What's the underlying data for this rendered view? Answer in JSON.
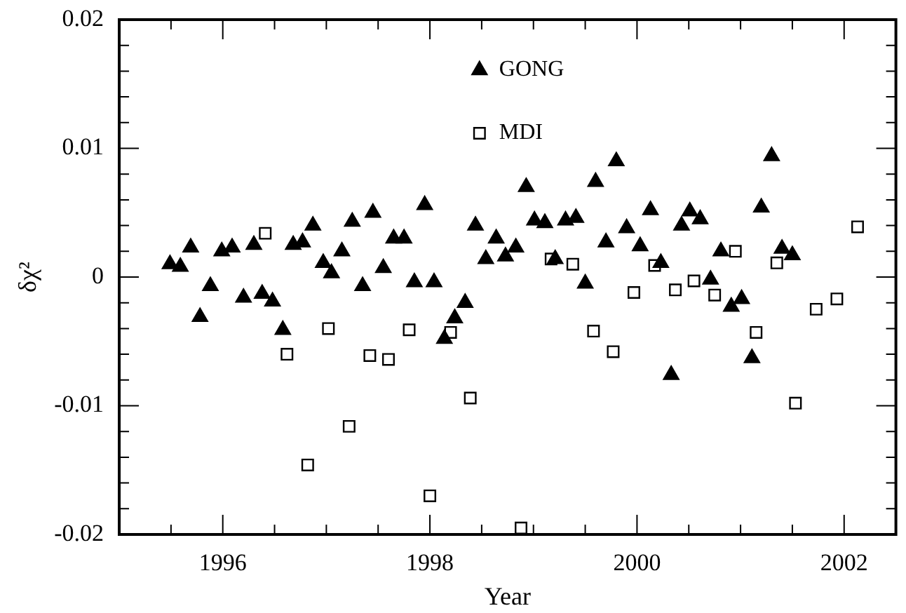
{
  "chart_data": {
    "type": "scatter",
    "xlabel": "Year",
    "ylabel": "δχ²",
    "legend": "top",
    "grid": false,
    "xlim": [
      1995,
      2002.5
    ],
    "xticks": [
      {
        "value": 1995.5,
        "label": null
      },
      1996,
      {
        "value": 1996.5,
        "label": null
      },
      {
        "value": 1997,
        "label": null
      },
      {
        "value": 1997.5,
        "label": null
      },
      1998,
      {
        "value": 1998.5,
        "label": null
      },
      {
        "value": 1999,
        "label": null
      },
      {
        "value": 1999.5,
        "label": null
      },
      2000,
      {
        "value": 2000.5,
        "label": null
      },
      {
        "value": 2001,
        "label": null
      },
      {
        "value": 2001.5,
        "label": null
      },
      2002
    ],
    "ylim": [
      -0.02,
      0.02
    ],
    "yticks": [
      -0.02,
      {
        "value": -0.018,
        "label": null
      },
      {
        "value": -0.016,
        "label": null
      },
      {
        "value": -0.014,
        "label": null
      },
      {
        "value": -0.012,
        "label": null
      },
      -0.01,
      {
        "value": -0.008,
        "label": null
      },
      {
        "value": -0.006,
        "label": null
      },
      {
        "value": -0.004,
        "label": null
      },
      {
        "value": -0.002,
        "label": null
      },
      0,
      {
        "value": 0.002,
        "label": null
      },
      {
        "value": 0.004,
        "label": null
      },
      {
        "value": 0.006,
        "label": null
      },
      {
        "value": 0.008,
        "label": null
      },
      0.01,
      {
        "value": 0.012,
        "label": null
      },
      {
        "value": 0.014,
        "label": null
      },
      {
        "value": 0.016,
        "label": null
      },
      {
        "value": 0.018,
        "label": null
      },
      0.02
    ],
    "series": [
      {
        "name": "GONG",
        "color": "#000000",
        "marker": "triangle",
        "x": [
          1995.49,
          1995.59,
          1995.69,
          1995.78,
          1995.88,
          1995.99,
          1996.09,
          1996.2,
          1996.3,
          1996.38,
          1996.48,
          1996.58,
          1996.68,
          1996.77,
          1996.87,
          1996.97,
          1997.05,
          1997.15,
          1997.25,
          1997.35,
          1997.45,
          1997.55,
          1997.65,
          1997.75,
          1997.85,
          1997.95,
          1998.04,
          1998.14,
          1998.24,
          1998.34,
          1998.44,
          1998.54,
          1998.64,
          1998.73,
          1998.83,
          1998.93,
          1999.01,
          1999.11,
          1999.21,
          1999.31,
          1999.41,
          1999.5,
          1999.6,
          1999.7,
          1999.8,
          1999.9,
          2000.03,
          2000.13,
          2000.23,
          2000.33,
          2000.43,
          2000.51,
          2000.61,
          2000.71,
          2000.81,
          2000.91,
          2001.01,
          2001.11,
          2001.2,
          2001.3,
          2001.4,
          2001.5
        ],
        "values": [
          0.001,
          0.0008,
          0.0023,
          -0.0031,
          -0.0007,
          0.002,
          0.0023,
          -0.0016,
          0.0025,
          -0.0013,
          -0.0019,
          -0.0041,
          0.0025,
          0.0027,
          0.004,
          0.0011,
          0.0003,
          0.002,
          0.0043,
          -0.0007,
          0.005,
          0.0007,
          0.003,
          0.003,
          -0.0004,
          0.0056,
          -0.0004,
          -0.0048,
          -0.0032,
          -0.002,
          0.004,
          0.0014,
          0.003,
          0.0016,
          0.0023,
          0.007,
          0.0044,
          0.0042,
          0.0014,
          0.0044,
          0.0046,
          -0.0005,
          0.0074,
          0.0027,
          0.009,
          0.0038,
          0.0024,
          0.0052,
          0.0011,
          -0.0076,
          0.004,
          0.0051,
          0.0045,
          -0.0002,
          0.002,
          -0.0023,
          -0.0017,
          -0.0063,
          0.0054,
          0.0094,
          0.0022,
          0.0017
        ]
      },
      {
        "name": "MDI",
        "color": "#000000",
        "marker": "square",
        "x": [
          1996.41,
          1996.62,
          1996.82,
          1997.02,
          1997.22,
          1997.42,
          1997.6,
          1997.8,
          1998.0,
          1998.2,
          1998.39,
          1998.88,
          1999.17,
          1999.38,
          1999.58,
          1999.77,
          1999.97,
          2000.17,
          2000.37,
          2000.55,
          2000.75,
          2000.95,
          2001.15,
          2001.35,
          2001.53,
          2001.73,
          2001.93,
          2002.13
        ],
        "values": [
          0.0034,
          -0.006,
          -0.0146,
          -0.004,
          -0.0116,
          -0.0061,
          -0.0064,
          -0.0041,
          -0.017,
          -0.0043,
          -0.0094,
          -0.0195,
          0.0014,
          0.001,
          -0.0042,
          -0.0058,
          -0.0012,
          0.0009,
          -0.001,
          -0.0003,
          -0.0014,
          0.002,
          -0.0043,
          0.0011,
          -0.0098,
          -0.0025,
          -0.0017,
          0.0039
        ]
      }
    ]
  }
}
